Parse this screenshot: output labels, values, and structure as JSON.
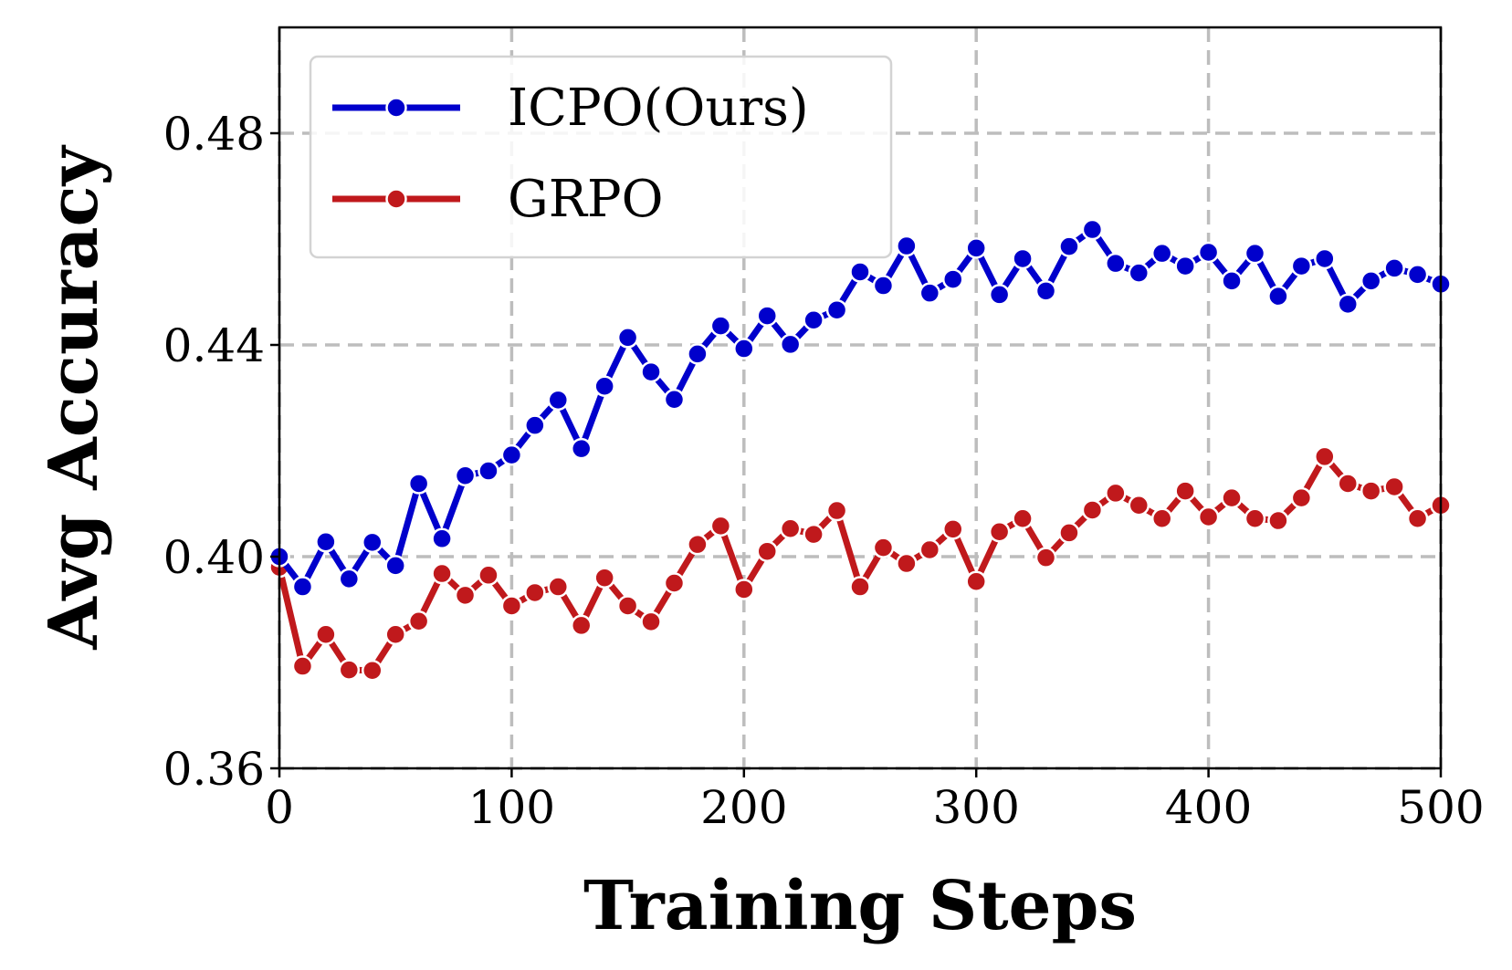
{
  "chart_data": {
    "type": "line",
    "xlabel": "Training Steps",
    "ylabel": "Avg Accuracy",
    "xlim": [
      0,
      500
    ],
    "ylim": [
      0.36,
      0.5
    ],
    "xticks": [
      0,
      100,
      200,
      300,
      400,
      500
    ],
    "xtick_labels": [
      "0",
      "100",
      "200",
      "300",
      "400",
      "500"
    ],
    "yticks": [
      0.36,
      0.4,
      0.44,
      0.48
    ],
    "ytick_labels": [
      "0.36",
      "0.40",
      "0.44",
      "0.48"
    ],
    "grid": true,
    "legend_position": "upper-left",
    "x": [
      0,
      10,
      20,
      30,
      40,
      50,
      60,
      70,
      80,
      90,
      100,
      110,
      120,
      130,
      140,
      150,
      160,
      170,
      180,
      190,
      200,
      210,
      220,
      230,
      240,
      250,
      260,
      270,
      280,
      290,
      300,
      310,
      320,
      330,
      340,
      350,
      360,
      370,
      380,
      390,
      400,
      410,
      420,
      430,
      440,
      450,
      460,
      470,
      480,
      490,
      500
    ],
    "series": [
      {
        "name": "ICPO(Ours)",
        "color": "#0000cc",
        "values": [
          0.4,
          0.3943,
          0.4028,
          0.3958,
          0.4027,
          0.3983,
          0.4138,
          0.4034,
          0.4153,
          0.4162,
          0.4192,
          0.4248,
          0.4296,
          0.4204,
          0.4322,
          0.4414,
          0.4349,
          0.4297,
          0.4383,
          0.4436,
          0.4393,
          0.4455,
          0.4401,
          0.4447,
          0.4466,
          0.4538,
          0.4512,
          0.4587,
          0.4498,
          0.4524,
          0.4583,
          0.4495,
          0.4563,
          0.4502,
          0.4586,
          0.4618,
          0.4554,
          0.4536,
          0.4573,
          0.4549,
          0.4575,
          0.4521,
          0.4573,
          0.4492,
          0.4549,
          0.4563,
          0.4477,
          0.4521,
          0.4545,
          0.4533,
          0.4515
        ]
      },
      {
        "name": "GRPO",
        "color": "#c0191c",
        "values": [
          0.398,
          0.3793,
          0.3853,
          0.3786,
          0.3785,
          0.3853,
          0.3878,
          0.3968,
          0.3927,
          0.3965,
          0.3907,
          0.3932,
          0.3943,
          0.387,
          0.396,
          0.3907,
          0.3877,
          0.395,
          0.4023,
          0.4058,
          0.3938,
          0.401,
          0.4053,
          0.4042,
          0.4087,
          0.3943,
          0.4017,
          0.3987,
          0.4013,
          0.4052,
          0.3953,
          0.4047,
          0.4072,
          0.3998,
          0.4045,
          0.4088,
          0.412,
          0.4097,
          0.4072,
          0.4124,
          0.4075,
          0.4111,
          0.4072,
          0.4068,
          0.4111,
          0.4189,
          0.4138,
          0.4124,
          0.4132,
          0.4072,
          0.4097
        ]
      }
    ]
  }
}
